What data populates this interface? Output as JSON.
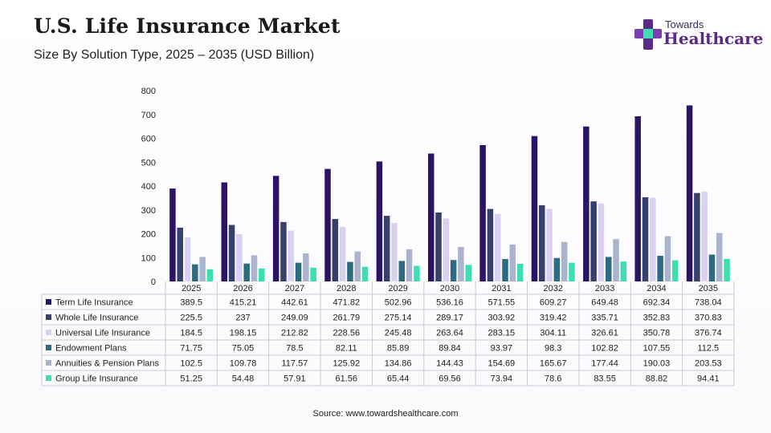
{
  "header": {
    "title": "U.S. Life Insurance Market",
    "subtitle": "Size By Solution Type, 2025 – 2035 (USD Billion)"
  },
  "logo": {
    "line1": "Towards",
    "line2": "Healthcare",
    "icon": "medical-cross-icon"
  },
  "footer": {
    "source": "Source: www.towardshealthcare.com"
  },
  "chart_data": {
    "type": "bar",
    "title": "U.S. Life Insurance Market",
    "subtitle": "Size By Solution Type, 2025 – 2035 (USD Billion)",
    "xlabel": "",
    "ylabel": "",
    "ylim": [
      0,
      800
    ],
    "yticks": [
      0,
      100,
      200,
      300,
      400,
      500,
      600,
      700,
      800
    ],
    "categories": [
      "2025",
      "2026",
      "2027",
      "2028",
      "2029",
      "2030",
      "2031",
      "2032",
      "2033",
      "2034",
      "2035"
    ],
    "legend_placement": "data-table-left",
    "series": [
      {
        "name": "Term Life Insurance",
        "color": "#2b1466",
        "label_values": [
          "389.5",
          "415.21",
          "442.61",
          "471.82",
          "502.96",
          "536.16",
          "571.55",
          "609.27",
          "649.48",
          "692.34",
          "738.04"
        ],
        "values": [
          389.5,
          415.21,
          442.61,
          471.82,
          502.96,
          536.16,
          571.55,
          609.27,
          649.48,
          692.34,
          738.04
        ]
      },
      {
        "name": "Whole Life Insurance",
        "color": "#35406e",
        "label_values": [
          "225.5",
          "237",
          "249.09",
          "261.79",
          "275.14",
          "289.17",
          "303.92",
          "319.42",
          "335.71",
          "352.83",
          "370.83"
        ],
        "values": [
          225.5,
          237,
          249.09,
          261.79,
          275.14,
          289.17,
          303.92,
          319.42,
          335.71,
          352.83,
          370.83
        ]
      },
      {
        "name": "Universal Life Insurance",
        "color": "#d9d1f1",
        "label_values": [
          "184.5",
          "198.15",
          "212.82",
          "228.56",
          "245.48",
          "263.64",
          "283.15",
          "304.11",
          "326.61",
          "350.78",
          "376.74"
        ],
        "values": [
          184.5,
          198.15,
          212.82,
          228.56,
          245.48,
          263.64,
          283.15,
          304.11,
          326.61,
          350.78,
          376.74
        ]
      },
      {
        "name": "Endowment Plans",
        "color": "#2f6b80",
        "label_values": [
          "71.75",
          "75.05",
          "78.5",
          "82.11",
          "85.89",
          "89.84",
          "93.97",
          "98.3",
          "102.82",
          "107.55",
          "112.5"
        ],
        "values": [
          71.75,
          75.05,
          78.5,
          82.11,
          85.89,
          89.84,
          93.97,
          98.3,
          102.82,
          107.55,
          112.5
        ]
      },
      {
        "name": "Annuities & Pension Plans",
        "color": "#aab4cf",
        "label_values": [
          "102.5",
          "109.78",
          "117.57",
          "125.92",
          "134.86",
          "144.43",
          "154.69",
          "165.67",
          "177.44",
          "190.03",
          "203.53"
        ],
        "values": [
          102.5,
          109.78,
          117.57,
          125.92,
          134.86,
          144.43,
          154.69,
          165.67,
          177.44,
          190.03,
          203.53
        ]
      },
      {
        "name": "Group Life Insurance",
        "color": "#3ddfb0",
        "label_values": [
          "51.25",
          "54.48",
          "57.91",
          "61.56",
          "65.44",
          "69.56",
          "73.94",
          "78.6",
          "83.55",
          "88.82",
          "94.41"
        ],
        "values": [
          51.25,
          54.48,
          57.91,
          61.56,
          65.44,
          69.56,
          73.94,
          78.6,
          83.55,
          88.82,
          94.41
        ]
      }
    ]
  }
}
